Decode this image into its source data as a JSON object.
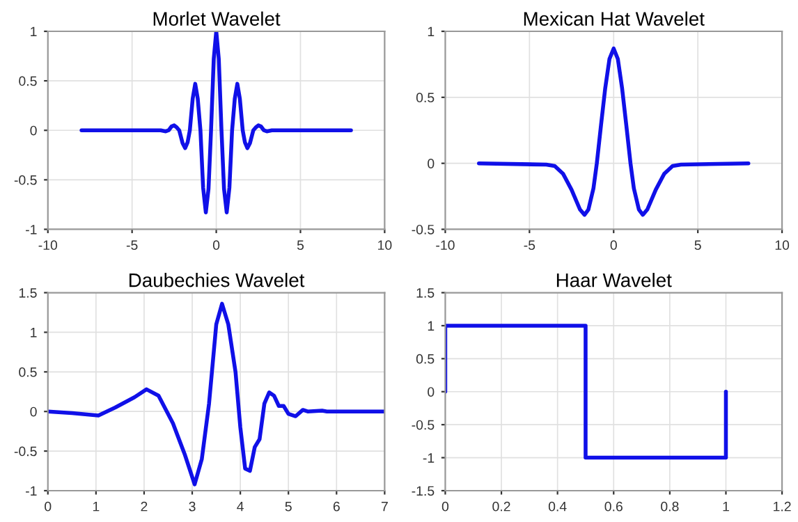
{
  "chart_data": [
    {
      "type": "line",
      "title": "Morlet Wavelet",
      "grid": true,
      "xlim": [
        -10,
        10
      ],
      "xticks": [
        -10,
        -5,
        0,
        5,
        10
      ],
      "ylim": [
        -1,
        1
      ],
      "yticks": [
        -1,
        -0.5,
        0,
        0.5,
        1
      ],
      "series": [
        {
          "color": "#1010e8",
          "x": [
            -8,
            -3.3,
            -3.0,
            -2.83,
            -2.65,
            -2.5,
            -2.35,
            -2.2,
            -2.0,
            -1.85,
            -1.7,
            -1.57,
            -1.4,
            -1.25,
            -1.1,
            -0.94,
            -0.78,
            -0.62,
            -0.46,
            -0.31,
            -0.15,
            0,
            0.15,
            0.31,
            0.46,
            0.62,
            0.78,
            0.94,
            1.1,
            1.25,
            1.4,
            1.57,
            1.7,
            1.85,
            2.0,
            2.2,
            2.35,
            2.5,
            2.65,
            2.83,
            3.0,
            3.3,
            8
          ],
          "values": [
            0,
            0,
            -0.01,
            0,
            0.04,
            0.05,
            0.03,
            0,
            -0.13,
            -0.18,
            -0.12,
            0,
            0.32,
            0.47,
            0.32,
            0,
            -0.58,
            -0.83,
            -0.59,
            0,
            0.72,
            1,
            0.72,
            0,
            -0.59,
            -0.83,
            -0.58,
            0,
            0.32,
            0.47,
            0.32,
            0,
            -0.12,
            -0.18,
            -0.13,
            0,
            0.03,
            0.05,
            0.04,
            0,
            -0.01,
            0,
            0
          ]
        }
      ]
    },
    {
      "type": "line",
      "title": "Mexican Hat Wavelet",
      "grid": true,
      "xlim": [
        -10,
        10
      ],
      "xticks": [
        -10,
        -5,
        0,
        5,
        10
      ],
      "ylim": [
        -0.5,
        1
      ],
      "yticks": [
        -0.5,
        0,
        0.5,
        1
      ],
      "series": [
        {
          "color": "#1010e8",
          "x": [
            -8,
            -4,
            -3.5,
            -3,
            -2.5,
            -2,
            -1.73,
            -1.5,
            -1.2,
            -1,
            -0.75,
            -0.5,
            -0.25,
            0,
            0.25,
            0.5,
            0.75,
            1,
            1.2,
            1.5,
            1.73,
            2,
            2.5,
            3,
            3.5,
            4,
            8
          ],
          "values": [
            0,
            -0.01,
            -0.02,
            -0.08,
            -0.2,
            -0.35,
            -0.39,
            -0.35,
            -0.19,
            0,
            0.29,
            0.57,
            0.79,
            0.87,
            0.79,
            0.57,
            0.29,
            0,
            -0.19,
            -0.35,
            -0.39,
            -0.35,
            -0.2,
            -0.08,
            -0.02,
            -0.01,
            0
          ]
        }
      ]
    },
    {
      "type": "line",
      "title": "Daubechies Wavelet",
      "grid": true,
      "xlim": [
        0,
        7
      ],
      "xticks": [
        0,
        1,
        2,
        3,
        4,
        5,
        6,
        7
      ],
      "ylim": [
        -1,
        1.5
      ],
      "yticks": [
        -1,
        -0.5,
        0,
        0.5,
        1,
        1.5
      ],
      "series": [
        {
          "color": "#1010e8",
          "x": [
            0,
            0.5,
            1.05,
            1.4,
            1.8,
            2.05,
            2.3,
            2.6,
            2.85,
            3.05,
            3.2,
            3.35,
            3.5,
            3.62,
            3.75,
            3.9,
            4.0,
            4.1,
            4.2,
            4.3,
            4.4,
            4.5,
            4.6,
            4.7,
            4.8,
            4.9,
            5.0,
            5.15,
            5.3,
            5.4,
            5.7,
            5.8,
            7
          ],
          "values": [
            0,
            -0.02,
            -0.05,
            0.05,
            0.18,
            0.28,
            0.2,
            -0.15,
            -0.55,
            -0.92,
            -0.6,
            0.1,
            1.1,
            1.36,
            1.1,
            0.5,
            -0.2,
            -0.72,
            -0.75,
            -0.45,
            -0.35,
            0.1,
            0.24,
            0.2,
            0.07,
            0.07,
            -0.03,
            -0.06,
            0.02,
            0,
            0.01,
            0,
            0
          ]
        }
      ]
    },
    {
      "type": "line",
      "title": "Haar Wavelet",
      "grid": true,
      "xlim": [
        0,
        1.2
      ],
      "xticks": [
        0,
        0.2,
        0.4,
        0.6,
        0.8,
        1,
        1.2
      ],
      "ylim": [
        -1.5,
        1.5
      ],
      "yticks": [
        -1.5,
        -1,
        -0.5,
        0,
        0.5,
        1,
        1.5
      ],
      "series": [
        {
          "color": "#1010e8",
          "x": [
            0,
            0,
            0.5,
            0.5,
            1,
            1
          ],
          "values": [
            0,
            1,
            1,
            -1,
            -1,
            0
          ]
        }
      ]
    }
  ]
}
